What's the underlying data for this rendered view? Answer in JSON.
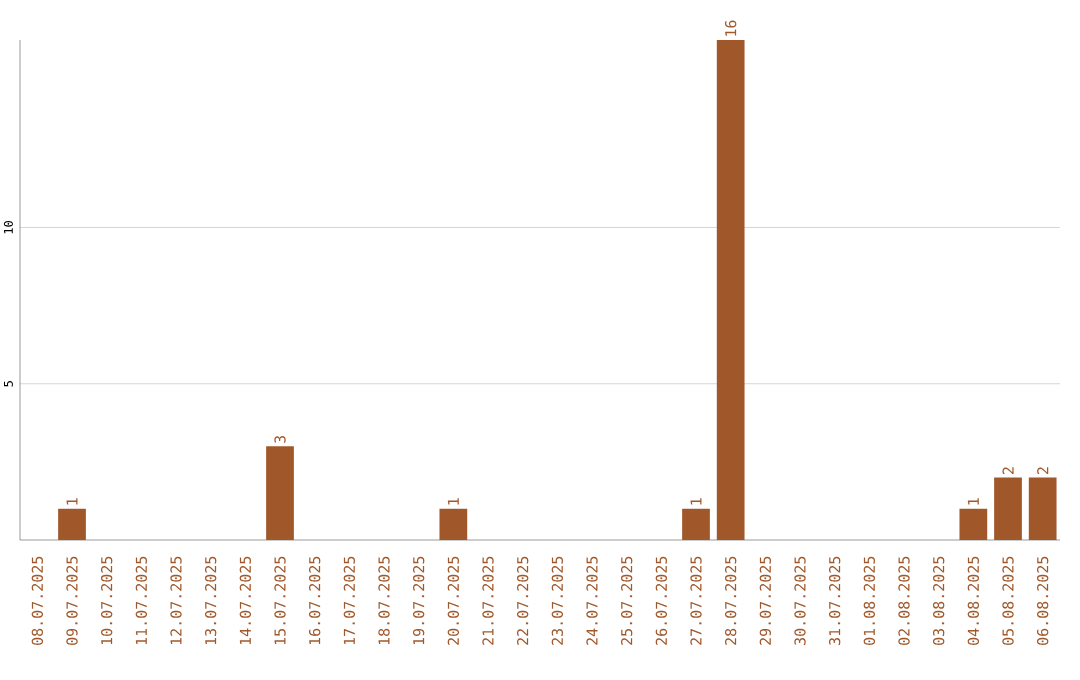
{
  "chart_data": {
    "type": "bar",
    "categories": [
      "08.07.2025",
      "09.07.2025",
      "10.07.2025",
      "11.07.2025",
      "12.07.2025",
      "13.07.2025",
      "14.07.2025",
      "15.07.2025",
      "16.07.2025",
      "17.07.2025",
      "18.07.2025",
      "19.07.2025",
      "20.07.2025",
      "21.07.2025",
      "22.07.2025",
      "23.07.2025",
      "24.07.2025",
      "25.07.2025",
      "26.07.2025",
      "27.07.2025",
      "28.07.2025",
      "29.07.2025",
      "30.07.2025",
      "31.07.2025",
      "01.08.2025",
      "02.08.2025",
      "03.08.2025",
      "04.08.2025",
      "05.08.2025",
      "06.08.2025"
    ],
    "values": [
      0,
      1,
      0,
      0,
      0,
      0,
      0,
      3,
      0,
      0,
      0,
      0,
      1,
      0,
      0,
      0,
      0,
      0,
      0,
      1,
      16,
      0,
      0,
      0,
      0,
      0,
      0,
      1,
      2,
      2
    ],
    "value_labels": [
      null,
      "1",
      null,
      null,
      null,
      null,
      null,
      "3",
      null,
      null,
      null,
      null,
      "1",
      null,
      null,
      null,
      null,
      null,
      null,
      "1",
      "16",
      null,
      null,
      null,
      null,
      null,
      null,
      "1",
      "2",
      "2"
    ],
    "color": "#a0582a",
    "ylim": [
      0,
      16
    ],
    "yticks": [
      5,
      10
    ],
    "grid": "y"
  }
}
